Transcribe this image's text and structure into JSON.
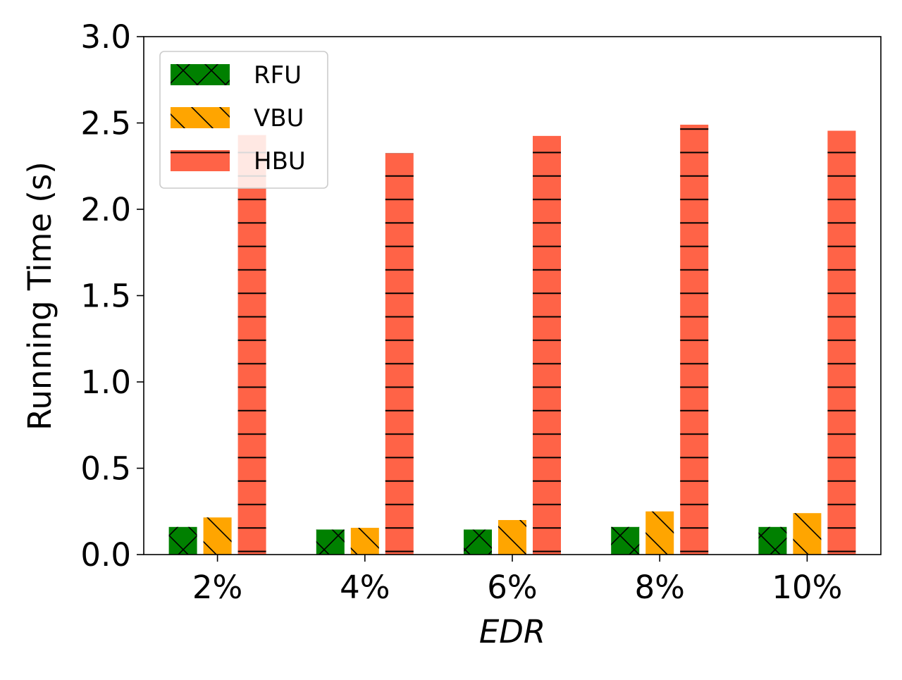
{
  "chart_data": {
    "type": "bar",
    "categories": [
      "2%",
      "4%",
      "6%",
      "8%",
      "10%"
    ],
    "series": [
      {
        "name": "RFU",
        "values": [
          0.16,
          0.145,
          0.145,
          0.16,
          0.16
        ],
        "color": "#008000",
        "hatch": "cross"
      },
      {
        "name": "VBU",
        "values": [
          0.215,
          0.155,
          0.2,
          0.25,
          0.24
        ],
        "color": "#FFA500",
        "hatch": "backslash"
      },
      {
        "name": "HBU",
        "values": [
          2.43,
          2.325,
          2.425,
          2.49,
          2.455
        ],
        "color": "#FF6347",
        "hatch": "horizontal"
      }
    ],
    "title": "",
    "xlabel": "EDR",
    "ylabel": "Running Time (s)",
    "ylim": [
      0,
      3.0
    ],
    "yticks": [
      "0.0",
      "0.5",
      "1.0",
      "1.5",
      "2.0",
      "2.5",
      "3.0"
    ],
    "grid": false,
    "legend_position": "top-left"
  }
}
